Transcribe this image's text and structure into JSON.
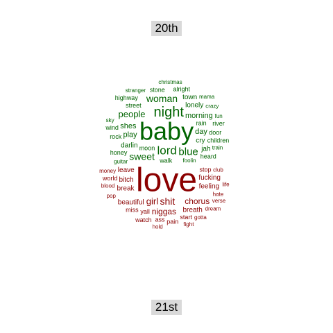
{
  "chart_data": {
    "type": "wordcloud",
    "layout": "comparison",
    "groups": [
      {
        "name": "20th",
        "color": "#006400",
        "label_position": "top"
      },
      {
        "name": "21st",
        "color": "#8b0000",
        "label_position": "bottom"
      }
    ],
    "words": [
      {
        "text": "love",
        "group": "21st",
        "size": 48
      },
      {
        "text": "baby",
        "group": "20th",
        "size": 36
      },
      {
        "text": "night",
        "group": "20th",
        "size": 20
      },
      {
        "text": "lord",
        "group": "20th",
        "size": 17
      },
      {
        "text": "blue",
        "group": "20th",
        "size": 15
      },
      {
        "text": "sweet",
        "group": "20th",
        "size": 14
      },
      {
        "text": "woman",
        "group": "20th",
        "size": 14
      },
      {
        "text": "people",
        "group": "20th",
        "size": 13
      },
      {
        "text": "morning",
        "group": "20th",
        "size": 11
      },
      {
        "text": "day",
        "group": "20th",
        "size": 11
      },
      {
        "text": "play",
        "group": "20th",
        "size": 11
      },
      {
        "text": "shes",
        "group": "20th",
        "size": 11
      },
      {
        "text": "lonely",
        "group": "20th",
        "size": 10
      },
      {
        "text": "cry",
        "group": "20th",
        "size": 10
      },
      {
        "text": "darlin",
        "group": "20th",
        "size": 10
      },
      {
        "text": "town",
        "group": "20th",
        "size": 10
      },
      {
        "text": "jah",
        "group": "20th",
        "size": 10
      },
      {
        "text": "street",
        "group": "20th",
        "size": 9
      },
      {
        "text": "door",
        "group": "20th",
        "size": 9
      },
      {
        "text": "stone",
        "group": "20th",
        "size": 9
      },
      {
        "text": "moon",
        "group": "20th",
        "size": 9
      },
      {
        "text": "river",
        "group": "20th",
        "size": 9
      },
      {
        "text": "alright",
        "group": "20th",
        "size": 9
      },
      {
        "text": "heard",
        "group": "20th",
        "size": 9
      },
      {
        "text": "children",
        "group": "20th",
        "size": 9
      },
      {
        "text": "walk",
        "group": "20th",
        "size": 9
      },
      {
        "text": "highway",
        "group": "20th",
        "size": 9
      },
      {
        "text": "rock",
        "group": "20th",
        "size": 9
      },
      {
        "text": "honey",
        "group": "20th",
        "size": 9
      },
      {
        "text": "wind",
        "group": "20th",
        "size": 9
      },
      {
        "text": "rain",
        "group": "20th",
        "size": 9
      },
      {
        "text": "foolin",
        "group": "20th",
        "size": 8
      },
      {
        "text": "crazy",
        "group": "20th",
        "size": 8
      },
      {
        "text": "fun",
        "group": "20th",
        "size": 8
      },
      {
        "text": "stranger",
        "group": "20th",
        "size": 8
      },
      {
        "text": "mama",
        "group": "20th",
        "size": 8
      },
      {
        "text": "train",
        "group": "20th",
        "size": 8
      },
      {
        "text": "guitar",
        "group": "20th",
        "size": 8
      },
      {
        "text": "sky",
        "group": "20th",
        "size": 8
      },
      {
        "text": "christmas",
        "group": "20th",
        "size": 8
      },
      {
        "text": "chorus",
        "group": "21st",
        "size": 12
      },
      {
        "text": "shit",
        "group": "21st",
        "size": 14
      },
      {
        "text": "girl",
        "group": "21st",
        "size": 13
      },
      {
        "text": "niggas",
        "group": "21st",
        "size": 12
      },
      {
        "text": "beautiful",
        "group": "21st",
        "size": 10
      },
      {
        "text": "fucking",
        "group": "21st",
        "size": 10
      },
      {
        "text": "feeling",
        "group": "21st",
        "size": 10
      },
      {
        "text": "bitch",
        "group": "21st",
        "size": 10
      },
      {
        "text": "leave",
        "group": "21st",
        "size": 10
      },
      {
        "text": "breath",
        "group": "21st",
        "size": 10
      },
      {
        "text": "break",
        "group": "21st",
        "size": 10
      },
      {
        "text": "stop",
        "group": "21st",
        "size": 9
      },
      {
        "text": "yall",
        "group": "21st",
        "size": 9
      },
      {
        "text": "ass",
        "group": "21st",
        "size": 9
      },
      {
        "text": "miss",
        "group": "21st",
        "size": 9
      },
      {
        "text": "start",
        "group": "21st",
        "size": 9
      },
      {
        "text": "pain",
        "group": "21st",
        "size": 9
      },
      {
        "text": "world",
        "group": "21st",
        "size": 9
      },
      {
        "text": "watch",
        "group": "21st",
        "size": 9
      },
      {
        "text": "hate",
        "group": "21st",
        "size": 8
      },
      {
        "text": "dream",
        "group": "21st",
        "size": 8
      },
      {
        "text": "club",
        "group": "21st",
        "size": 8
      },
      {
        "text": "verse",
        "group": "21st",
        "size": 8
      },
      {
        "text": "pop",
        "group": "21st",
        "size": 8
      },
      {
        "text": "gotta",
        "group": "21st",
        "size": 8
      },
      {
        "text": "money",
        "group": "21st",
        "size": 8
      },
      {
        "text": "life",
        "group": "21st",
        "size": 8
      },
      {
        "text": "hold",
        "group": "21st",
        "size": 8
      },
      {
        "text": "blood",
        "group": "21st",
        "size": 8
      },
      {
        "text": "fight",
        "group": "21st",
        "size": 8
      }
    ]
  },
  "labels": {
    "top": "20th",
    "bottom": "21st"
  }
}
